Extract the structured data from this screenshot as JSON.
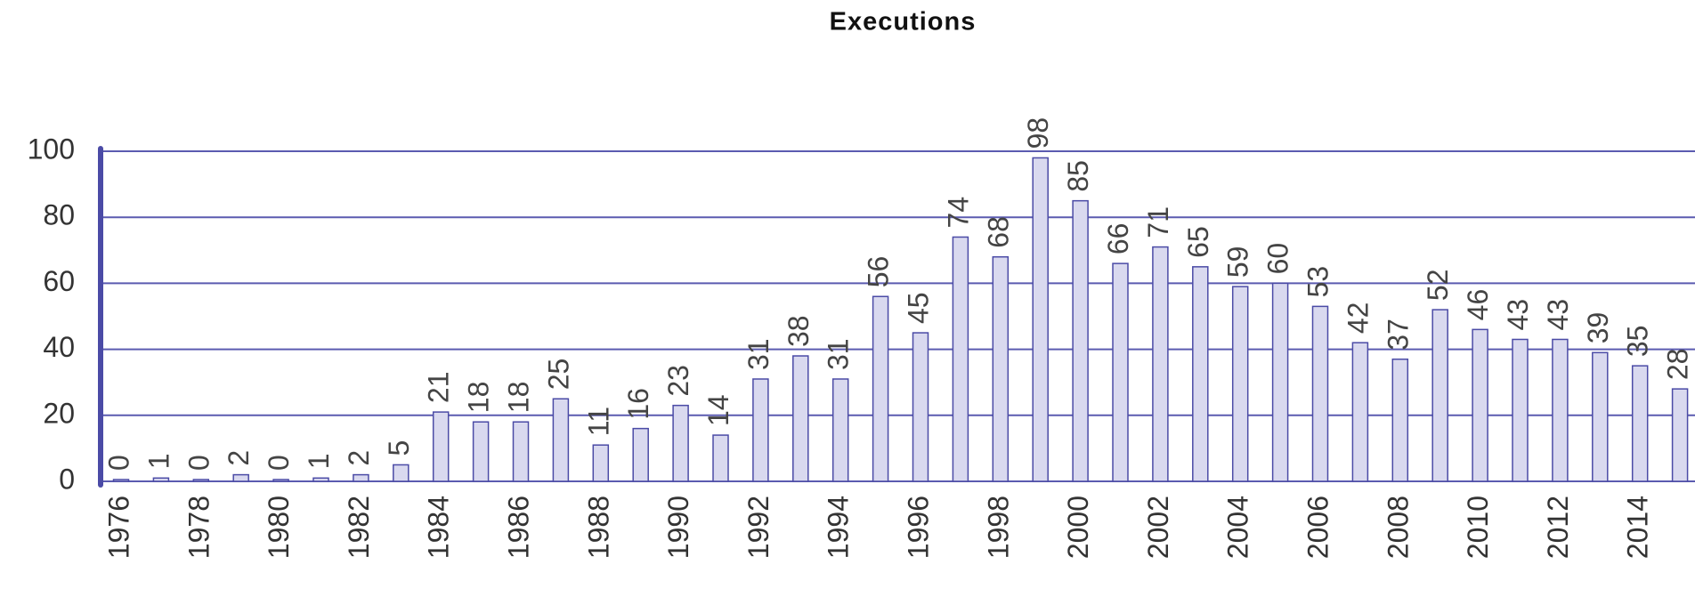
{
  "chart_data": {
    "type": "bar",
    "title": "Executions",
    "categories": [
      "1976",
      null,
      "1978",
      null,
      "1980",
      null,
      "1982",
      null,
      "1984",
      null,
      "1986",
      null,
      "1988",
      null,
      "1990",
      null,
      "1992",
      null,
      "1994",
      null,
      "1996",
      null,
      "1998",
      null,
      "2000",
      null,
      "2002",
      null,
      "2004",
      null,
      "2006",
      null,
      "2008",
      null,
      "2010",
      null,
      "2012",
      null,
      "2014",
      null
    ],
    "values": [
      0,
      1,
      0,
      2,
      0,
      1,
      2,
      5,
      21,
      18,
      18,
      25,
      11,
      16,
      23,
      14,
      31,
      38,
      31,
      56,
      45,
      74,
      68,
      98,
      85,
      66,
      71,
      65,
      59,
      60,
      53,
      42,
      37,
      52,
      46,
      43,
      43,
      39,
      35,
      28
    ],
    "color": "#d9d9ef",
    "ylim": [
      0,
      100
    ],
    "yticks": [
      0,
      20,
      40,
      60,
      80,
      100
    ],
    "grid": true
  }
}
